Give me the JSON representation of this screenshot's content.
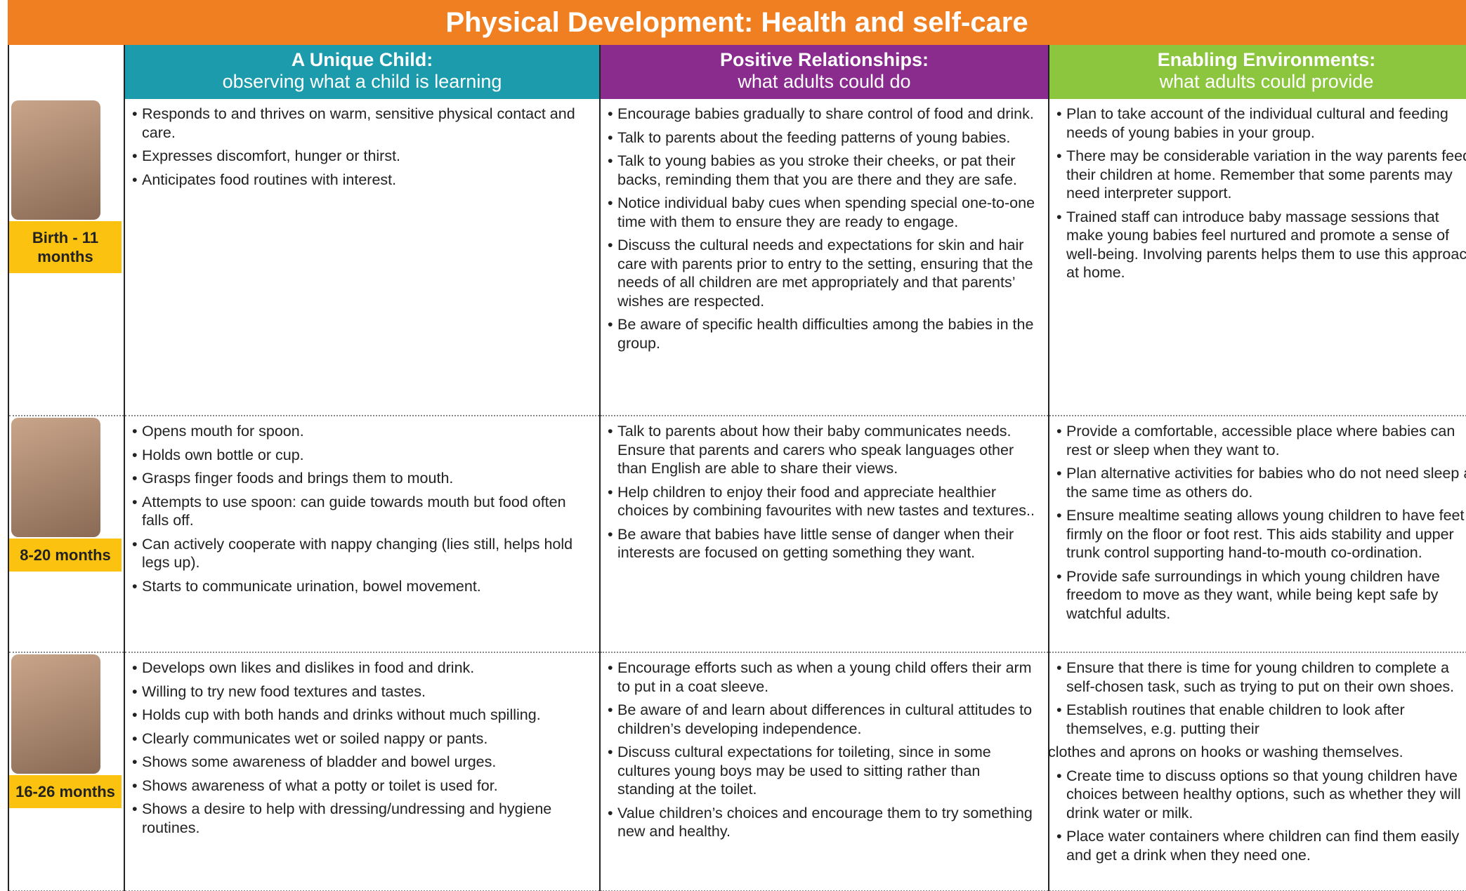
{
  "header": {
    "title": "Physical Development: Health and self-care"
  },
  "columns": [
    {
      "title": "A Unique Child:",
      "subtitle": "observing what a child is learning"
    },
    {
      "title": "Positive Relationships:",
      "subtitle": "what adults could do"
    },
    {
      "title": "Enabling Environments:",
      "subtitle": "what adults could provide"
    }
  ],
  "rows": [
    {
      "label": "Birth - 11 months",
      "cells": [
        [
          "Responds to and thrives on warm, sensitive physical contact and care.",
          "Expresses discomfort, hunger or thirst.",
          "Anticipates food routines with interest."
        ],
        [
          "Encourage babies gradually to share control of food and drink.",
          "Talk to parents about the feeding patterns of young babies.",
          "Talk to young babies as you stroke their cheeks, or pat their backs, reminding them that you are there and they are safe.",
          "Notice individual baby cues when spending special one-to-one time with them to ensure they are ready to engage.",
          "Discuss the cultural needs and expectations for skin and hair care with parents prior to entry to the setting, ensuring that the needs of all children are met appropriately and that parents’ wishes are respected.",
          "Be aware of specific health difficulties among the babies in the group."
        ],
        [
          "Plan to take account of the individual cultural and feeding needs of young babies in your group.",
          "There may be considerable variation in the way parents feed their children at home.  Remember that some parents may need interpreter support.",
          "Trained staff can introduce baby massage sessions that make young babies feel nurtured and promote a sense of well-being.  Involving parents helps them to use this approach at home."
        ]
      ]
    },
    {
      "label": "8-20 months",
      "cells": [
        [
          "Opens mouth for spoon.",
          "Holds own bottle or cup.",
          "Grasps finger foods and brings them to mouth.",
          "Attempts to use spoon: can guide towards mouth but food often falls off.",
          "Can actively cooperate with nappy changing (lies still, helps hold legs up).",
          "Starts to communicate urination, bowel movement."
        ],
        [
          "Talk to parents about how their baby communicates needs. Ensure that parents and carers who speak languages other than English are able to share their views.",
          "Help children to enjoy their food and appreciate healthier choices by combining favourites with new tastes and textures..",
          "Be aware that babies have little sense of danger when their interests are focused on getting something they want."
        ],
        [
          "Provide a comfortable, accessible place where babies can rest or sleep when they want to.",
          "Plan alternative activities for babies who do not need sleep at the same time as others do.",
          "Ensure mealtime seating allows young children to have feet firmly on the floor or foot rest.  This aids stability and upper trunk control supporting hand-to-mouth co-ordination.",
          "Provide safe surroundings in which young children have freedom to move as they want, while being kept safe by watchful adults."
        ]
      ]
    },
    {
      "label": "16-26 months",
      "cells": [
        [
          "Develops own likes and dislikes in food and drink.",
          "Willing to try new food textures and tastes.",
          "Holds cup with both hands and drinks without much spilling.",
          "Clearly communicates wet or soiled nappy or pants.",
          "Shows some awareness of bladder and bowel urges.",
          "Shows awareness of what a potty or toilet is used for.",
          "Shows a desire to help with dressing/undressing and hygiene routines."
        ],
        [
          "Encourage efforts such as when a young child offers their arm to put in a coat sleeve.",
          "Be aware of and learn about differences in cultural attitudes to children’s developing independence.",
          "Discuss cultural expectations for toileting, since in some cultures young boys may be used to sitting rather than standing at the toilet.",
          "Value children’s choices and encourage them to try something new and healthy."
        ],
        [
          "Ensure that there is time for young children to complete a self-chosen task, such as trying to put on their own shoes.",
          "Establish routines that enable children to look after themselves, e.g. putting their",
          "clothes and aprons on hooks or washing themselves.",
          "Create time to discuss options so that young children have choices between healthy options, such as whether they will drink water or milk.",
          "Place water containers where children can find them easily and get a drink when they need one."
        ]
      ]
    }
  ]
}
